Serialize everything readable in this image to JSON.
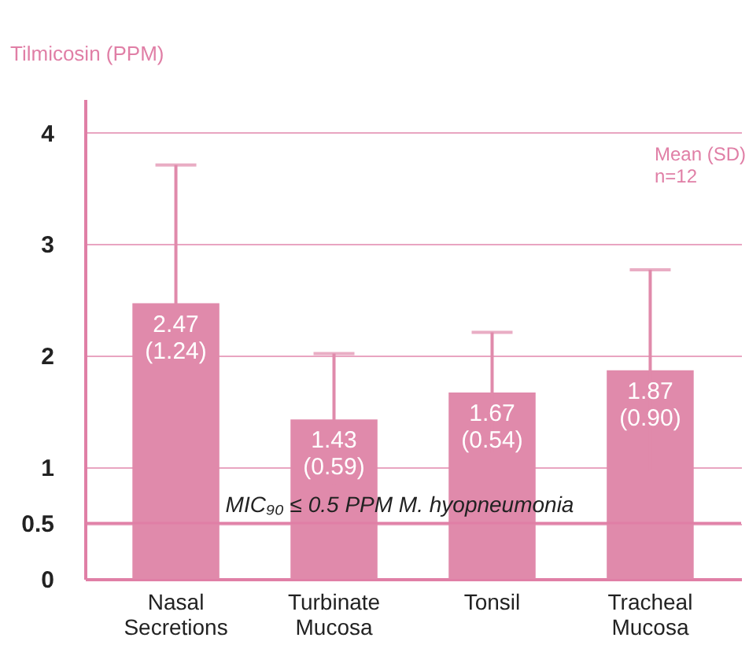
{
  "chart_data": {
    "type": "bar",
    "ylabel": "Tilmicosin (PPM)",
    "categories": [
      "Nasal Secretions",
      "Turbinate Mucosa",
      "Tonsil",
      "Tracheal Mucosa"
    ],
    "values": [
      2.47,
      1.43,
      1.67,
      1.87
    ],
    "errors": [
      1.24,
      0.59,
      0.54,
      0.9
    ],
    "value_labels": [
      "2.47\n(1.24)",
      "1.43\n(0.59)",
      "1.67\n(0.54)",
      "1.87\n(0.90)"
    ],
    "color": "#e08aab",
    "ylim": [
      0,
      4.3
    ],
    "yticks": [
      0,
      0.5,
      1,
      2,
      3,
      4
    ],
    "grid": "y",
    "ref_lines": [
      {
        "axis": "y",
        "value": 0.5,
        "label": "MIC₉₀ ≤ 0.5 PPM M. hyopneumonia",
        "color": "#e07fa6"
      }
    ],
    "annotations": [
      "Mean (SD)\nn=12"
    ]
  }
}
